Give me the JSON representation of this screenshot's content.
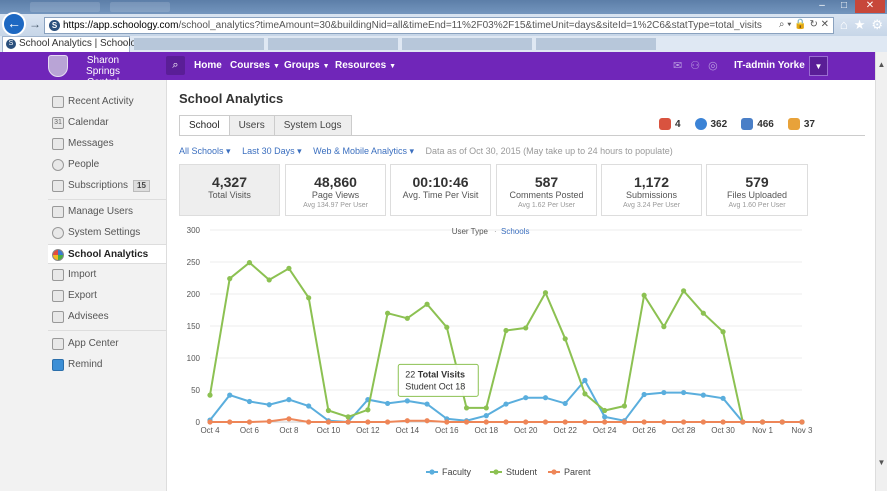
{
  "browser": {
    "url_host": "https://app.schoology.com",
    "url_path": "/school_analytics?timeAmount=30&buildingNid=all&timeEnd=11%2F03%2F15&timeUnit=days&siteId=1%2C6&statType=total_visits",
    "tab_title": "School Analytics | Schoology"
  },
  "header": {
    "school_name": "Sharon Springs Central School",
    "nav": [
      "Home",
      "Courses",
      "Groups",
      "Resources"
    ],
    "user": "IT-admin Yorke"
  },
  "sidebar": {
    "items": [
      {
        "label": "Recent Activity"
      },
      {
        "label": "Calendar",
        "icon": "31"
      },
      {
        "label": "Messages"
      },
      {
        "label": "People"
      },
      {
        "label": "Subscriptions",
        "badge": "15"
      },
      {
        "label": "Manage Users"
      },
      {
        "label": "System Settings"
      },
      {
        "label": "School Analytics"
      },
      {
        "label": "Import"
      },
      {
        "label": "Export"
      },
      {
        "label": "Advisees"
      },
      {
        "label": "App Center"
      },
      {
        "label": "Remind"
      }
    ]
  },
  "main": {
    "title": "School Analytics",
    "tabs": [
      "School",
      "Users",
      "System Logs"
    ],
    "counts": [
      {
        "value": "4",
        "color": "#d9533f",
        "icon": "admin-icon"
      },
      {
        "value": "362",
        "color": "#3b83d6",
        "icon": "faculty-icon"
      },
      {
        "value": "466",
        "color": "#4a7fc7",
        "icon": "course-icon"
      },
      {
        "value": "37",
        "color": "#e8a23a",
        "icon": "group-icon"
      }
    ],
    "filters": {
      "schools": "All Schools ▾",
      "range": "Last 30 Days ▾",
      "platform": "Web & Mobile Analytics ▾",
      "note": "Data as of Oct 30, 2015 (May take up to 24 hours to populate)"
    },
    "stats": [
      {
        "value": "4,327",
        "label": "Total Visits",
        "sub": ""
      },
      {
        "value": "48,860",
        "label": "Page Views",
        "sub": "Avg 134.97 Per User"
      },
      {
        "value": "00:10:46",
        "label": "Avg. Time Per Visit",
        "sub": ""
      },
      {
        "value": "587",
        "label": "Comments Posted",
        "sub": "Avg 1.62 Per User"
      },
      {
        "value": "1,172",
        "label": "Submissions",
        "sub": "Avg 3.24 Per User"
      },
      {
        "value": "579",
        "label": "Files Uploaded",
        "sub": "Avg 1.60 Per User"
      }
    ]
  },
  "chart_data": {
    "type": "line",
    "toggle_label": "User Type",
    "toggle_link": "Schools",
    "ylim": [
      0,
      300
    ],
    "yticks": [
      0,
      50,
      100,
      150,
      200,
      250,
      300
    ],
    "x": [
      "Oct 4",
      "Oct 5",
      "Oct 6",
      "Oct 7",
      "Oct 8",
      "Oct 9",
      "Oct 10",
      "Oct 11",
      "Oct 12",
      "Oct 13",
      "Oct 14",
      "Oct 15",
      "Oct 16",
      "Oct 17",
      "Oct 18",
      "Oct 19",
      "Oct 20",
      "Oct 21",
      "Oct 22",
      "Oct 23",
      "Oct 24",
      "Oct 25",
      "Oct 26",
      "Oct 27",
      "Oct 28",
      "Oct 29",
      "Oct 30",
      "Oct 31",
      "Nov 1",
      "Nov 2",
      "Nov 3"
    ],
    "xtick_labels": [
      "Oct 4",
      "Oct 6",
      "Oct 8",
      "Oct 10",
      "Oct 12",
      "Oct 14",
      "Oct 16",
      "Oct 18",
      "Oct 20",
      "Oct 22",
      "Oct 24",
      "Oct 26",
      "Oct 28",
      "Oct 30",
      "Nov 1",
      "Nov 3"
    ],
    "series": [
      {
        "name": "Faculty",
        "color": "#5aaedd",
        "values": [
          3,
          42,
          32,
          27,
          35,
          25,
          2,
          0,
          35,
          29,
          33,
          28,
          5,
          2,
          10,
          28,
          38,
          38,
          29,
          65,
          8,
          2,
          43,
          46,
          46,
          42,
          37,
          0,
          0,
          0,
          0
        ]
      },
      {
        "name": "Student",
        "color": "#8cc152",
        "values": [
          42,
          224,
          249,
          222,
          240,
          194,
          18,
          8,
          19,
          170,
          162,
          184,
          148,
          22,
          22,
          143,
          147,
          202,
          130,
          44,
          18,
          25,
          198,
          149,
          205,
          170,
          141,
          0,
          0,
          0,
          0
        ]
      },
      {
        "name": "Parent",
        "color": "#ee8658",
        "values": [
          0,
          0,
          0,
          1,
          5,
          0,
          0,
          0,
          0,
          0,
          2,
          2,
          0,
          0,
          0,
          0,
          0,
          0,
          0,
          0,
          0,
          0,
          0,
          0,
          0,
          0,
          0,
          0,
          0,
          0,
          0
        ]
      }
    ],
    "tooltip": {
      "series": "Student",
      "x": "Oct 18",
      "title_num": "22",
      "title_txt": "Total Visits",
      "subtitle": "Student Oct 18"
    }
  }
}
